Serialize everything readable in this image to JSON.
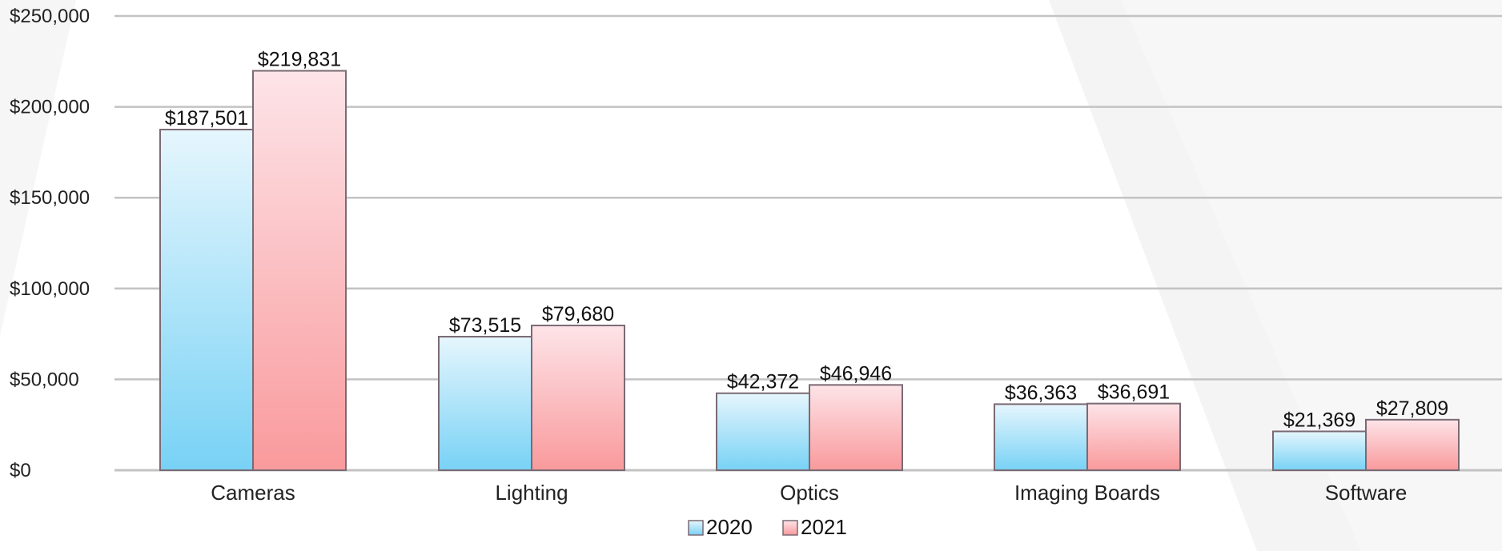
{
  "chart_data": {
    "type": "bar",
    "title": "",
    "xlabel": "",
    "ylabel": "",
    "categories": [
      "Cameras",
      "Lighting",
      "Optics",
      "Imaging Boards",
      "Software"
    ],
    "series": [
      {
        "name": "2020",
        "values": [
          187501,
          73515,
          42372,
          36363,
          21369
        ],
        "labels": [
          "$187,501",
          "$73,515",
          "$42,372",
          "$36,363",
          "$21,369"
        ],
        "color_top": "#e6f6fd",
        "color_bottom": "#78d2f5"
      },
      {
        "name": "2021",
        "values": [
          219831,
          79680,
          46946,
          36691,
          27809
        ],
        "labels": [
          "$219,831",
          "$79,680",
          "$46,946",
          "$36,691",
          "$27,809"
        ],
        "color_top": "#fde4e8",
        "color_bottom": "#f99a9c"
      }
    ],
    "ylim": [
      0,
      250000
    ],
    "y_ticks": [
      0,
      50000,
      100000,
      150000,
      200000,
      250000
    ],
    "y_tick_labels": [
      "$0",
      "$50,000",
      "$100,000",
      "$150,000",
      "$200,000",
      "$250,000"
    ],
    "grid": true,
    "grid_color": "#c3c3c3",
    "bar_border_color": "#7a6a74",
    "legend_position": "bottom-center"
  }
}
